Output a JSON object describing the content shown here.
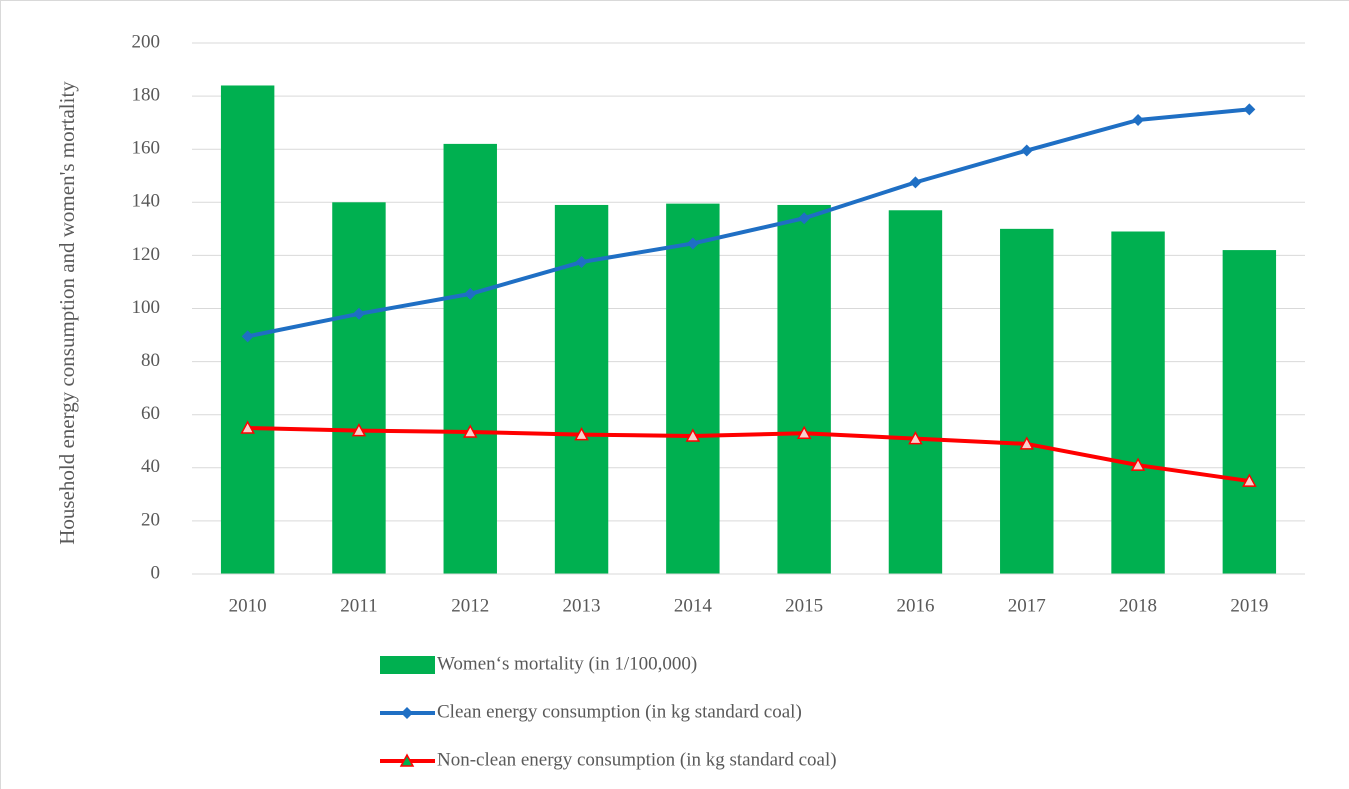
{
  "chart_data": {
    "type": "combo",
    "y_label": "Household energy consumption and women's mortality",
    "categories": [
      "2010",
      "2011",
      "2012",
      "2013",
      "2014",
      "2015",
      "2016",
      "2017",
      "2018",
      "2019"
    ],
    "series": [
      {
        "name": "Women‘s mortality (in 1/100,000)",
        "type": "bar",
        "color": "#00b050",
        "values": [
          184,
          140,
          162,
          139,
          139.5,
          139,
          137,
          130,
          129,
          122
        ]
      },
      {
        "name": "Clean energy consumption (in kg standard coal)",
        "type": "line",
        "marker": "diamond",
        "color": "#1f6fc4",
        "values": [
          89.5,
          98,
          105.5,
          117.5,
          124.5,
          134,
          147.5,
          159.5,
          171,
          175
        ]
      },
      {
        "name": "Non-clean energy consumption (in kg standard coal)",
        "type": "line",
        "marker": "triangle",
        "color": "#ff0000",
        "values": [
          55,
          54,
          53.5,
          52.5,
          52,
          53,
          51,
          49,
          41,
          35
        ]
      }
    ],
    "ylim": [
      0,
      200
    ],
    "yticks": [
      0,
      20,
      40,
      60,
      80,
      100,
      120,
      140,
      160,
      180,
      200
    ],
    "grid": true,
    "legend": "bottom"
  }
}
